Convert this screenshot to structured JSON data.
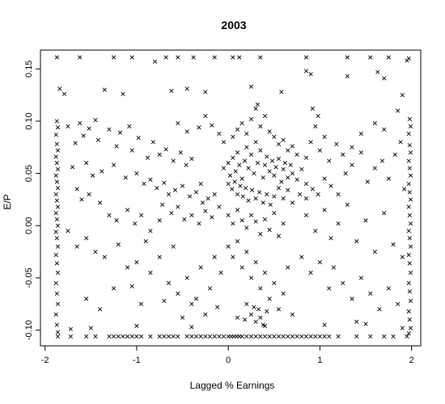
{
  "chart_data": {
    "type": "scatter",
    "title": "2003",
    "xlabel": "Lagged % Earnings",
    "ylabel": "E/P",
    "xlim": [
      -2.05,
      2.1
    ],
    "ylim": [
      -0.115,
      0.168
    ],
    "xticks": [
      -2,
      -1,
      0,
      1,
      2
    ],
    "xtick_labels": [
      "-2",
      "-1",
      "0",
      "1",
      "2"
    ],
    "yticks": [
      -0.1,
      -0.05,
      0.0,
      0.05,
      0.1,
      0.15
    ],
    "ytick_labels": [
      "-0.10",
      "-0.05",
      "0.00",
      "0.05",
      "0.10",
      "0.15"
    ],
    "marker": "x",
    "grid": false,
    "legend": "none",
    "points": [
      [
        -1.87,
        0.161
      ],
      [
        -1.62,
        0.161
      ],
      [
        -1.25,
        0.161
      ],
      [
        -1.05,
        0.161
      ],
      [
        -0.8,
        0.157
      ],
      [
        -0.68,
        0.161
      ],
      [
        -0.55,
        0.161
      ],
      [
        -0.38,
        0.161
      ],
      [
        -0.15,
        0.161
      ],
      [
        0.05,
        0.161
      ],
      [
        0.12,
        0.161
      ],
      [
        0.35,
        0.161
      ],
      [
        0.85,
        0.161
      ],
      [
        1.3,
        0.161
      ],
      [
        1.55,
        0.161
      ],
      [
        1.75,
        0.161
      ],
      [
        1.95,
        0.158
      ],
      [
        1.97,
        0.16
      ],
      [
        -1.84,
        0.131
      ],
      [
        -1.79,
        0.126
      ],
      [
        -1.35,
        0.13
      ],
      [
        -1.15,
        0.126
      ],
      [
        -0.62,
        0.129
      ],
      [
        -0.45,
        0.131
      ],
      [
        -0.25,
        0.128
      ],
      [
        0.25,
        0.133
      ],
      [
        0.58,
        0.128
      ],
      [
        1.3,
        0.143
      ],
      [
        1.63,
        0.147
      ],
      [
        1.7,
        0.141
      ],
      [
        0.85,
        0.148
      ],
      [
        0.9,
        0.145
      ],
      [
        -1.87,
        0.1
      ],
      [
        -1.86,
        0.094
      ],
      [
        -1.88,
        0.087
      ],
      [
        -1.87,
        0.078
      ],
      [
        -1.86,
        0.072
      ],
      [
        -1.88,
        0.066
      ],
      [
        -1.87,
        0.06
      ],
      [
        -1.86,
        0.054
      ],
      [
        -1.88,
        0.048
      ],
      [
        -1.87,
        0.042
      ],
      [
        -1.86,
        0.036
      ],
      [
        -1.88,
        0.03
      ],
      [
        -1.87,
        0.024
      ],
      [
        -1.86,
        0.018
      ],
      [
        -1.88,
        0.012
      ],
      [
        -1.87,
        0.006
      ],
      [
        -1.86,
        0.0
      ],
      [
        -1.88,
        -0.006
      ],
      [
        -1.87,
        -0.012
      ],
      [
        -1.86,
        -0.02
      ],
      [
        -1.88,
        -0.028
      ],
      [
        -1.87,
        -0.036
      ],
      [
        -1.86,
        -0.045
      ],
      [
        -1.88,
        -0.055
      ],
      [
        -1.87,
        -0.065
      ],
      [
        -1.86,
        -0.075
      ],
      [
        -1.88,
        -0.085
      ],
      [
        -1.87,
        -0.095
      ],
      [
        -1.86,
        -0.102
      ],
      [
        1.98,
        0.102
      ],
      [
        1.99,
        0.095
      ],
      [
        1.97,
        0.088
      ],
      [
        1.98,
        0.077
      ],
      [
        1.99,
        0.07
      ],
      [
        1.97,
        0.062
      ],
      [
        1.98,
        0.055
      ],
      [
        1.99,
        0.048
      ],
      [
        1.97,
        0.04
      ],
      [
        1.98,
        0.032
      ],
      [
        1.99,
        0.025
      ],
      [
        1.97,
        0.018
      ],
      [
        1.98,
        0.01
      ],
      [
        1.99,
        0.002
      ],
      [
        1.97,
        -0.005
      ],
      [
        1.98,
        -0.012
      ],
      [
        1.99,
        -0.02
      ],
      [
        1.97,
        -0.028
      ],
      [
        1.98,
        -0.036
      ],
      [
        1.99,
        -0.045
      ],
      [
        1.97,
        -0.055
      ],
      [
        1.98,
        -0.063
      ],
      [
        1.99,
        -0.072
      ],
      [
        1.97,
        -0.082
      ],
      [
        1.98,
        -0.09
      ],
      [
        1.99,
        -0.098
      ],
      [
        1.97,
        -0.103
      ],
      [
        -1.86,
        -0.106
      ],
      [
        -1.72,
        -0.106
      ],
      [
        -1.55,
        -0.106
      ],
      [
        -1.45,
        -0.106
      ],
      [
        -1.3,
        -0.106
      ],
      [
        -1.25,
        -0.106
      ],
      [
        -1.2,
        -0.106
      ],
      [
        -1.15,
        -0.106
      ],
      [
        -1.1,
        -0.106
      ],
      [
        -1.05,
        -0.106
      ],
      [
        -1.0,
        -0.106
      ],
      [
        -0.95,
        -0.106
      ],
      [
        -0.85,
        -0.106
      ],
      [
        -0.75,
        -0.106
      ],
      [
        -0.7,
        -0.106
      ],
      [
        -0.65,
        -0.106
      ],
      [
        -0.6,
        -0.106
      ],
      [
        -0.55,
        -0.106
      ],
      [
        -0.45,
        -0.106
      ],
      [
        -0.4,
        -0.106
      ],
      [
        -0.35,
        -0.106
      ],
      [
        -0.3,
        -0.106
      ],
      [
        -0.25,
        -0.106
      ],
      [
        -0.2,
        -0.106
      ],
      [
        -0.15,
        -0.106
      ],
      [
        -0.1,
        -0.106
      ],
      [
        -0.05,
        -0.106
      ],
      [
        0.0,
        -0.106
      ],
      [
        0.03,
        -0.106
      ],
      [
        0.06,
        -0.106
      ],
      [
        0.09,
        -0.106
      ],
      [
        0.12,
        -0.106
      ],
      [
        0.15,
        -0.106
      ],
      [
        0.2,
        -0.106
      ],
      [
        0.25,
        -0.106
      ],
      [
        0.3,
        -0.106
      ],
      [
        0.35,
        -0.106
      ],
      [
        0.4,
        -0.106
      ],
      [
        0.45,
        -0.106
      ],
      [
        0.5,
        -0.106
      ],
      [
        0.55,
        -0.106
      ],
      [
        0.6,
        -0.106
      ],
      [
        0.65,
        -0.106
      ],
      [
        0.7,
        -0.106
      ],
      [
        0.75,
        -0.106
      ],
      [
        0.8,
        -0.106
      ],
      [
        0.85,
        -0.106
      ],
      [
        0.9,
        -0.106
      ],
      [
        0.95,
        -0.106
      ],
      [
        1.0,
        -0.106
      ],
      [
        1.05,
        -0.106
      ],
      [
        1.1,
        -0.106
      ],
      [
        1.2,
        -0.106
      ],
      [
        1.4,
        -0.106
      ],
      [
        1.55,
        -0.106
      ],
      [
        1.7,
        -0.106
      ],
      [
        1.8,
        -0.106
      ],
      [
        1.95,
        -0.106
      ],
      [
        -1.72,
        -0.099
      ],
      [
        -1.5,
        -0.098
      ],
      [
        -1.0,
        -0.096
      ],
      [
        -0.4,
        -0.097
      ],
      [
        0.4,
        -0.096
      ],
      [
        1.05,
        -0.095
      ],
      [
        1.4,
        -0.092
      ],
      [
        1.5,
        -0.094
      ],
      [
        1.9,
        -0.098
      ],
      [
        -1.75,
        0.095
      ],
      [
        -1.62,
        0.098
      ],
      [
        -1.52,
        0.093
      ],
      [
        -1.45,
        0.101
      ],
      [
        -1.3,
        0.092
      ],
      [
        -1.18,
        0.089
      ],
      [
        -1.08,
        0.095
      ],
      [
        -0.98,
        0.084
      ],
      [
        -1.58,
        0.086
      ],
      [
        -1.67,
        0.079
      ],
      [
        -1.42,
        0.082
      ],
      [
        -1.22,
        0.076
      ],
      [
        -1.05,
        0.072
      ],
      [
        -0.88,
        0.065
      ],
      [
        -0.75,
        0.068
      ],
      [
        -0.82,
        0.08
      ],
      [
        -0.68,
        0.073
      ],
      [
        -0.6,
        0.062
      ],
      [
        -0.52,
        0.07
      ],
      [
        -0.46,
        0.058
      ],
      [
        -0.4,
        0.064
      ],
      [
        -0.45,
        0.09
      ],
      [
        -0.55,
        0.098
      ],
      [
        -0.32,
        0.094
      ],
      [
        -0.25,
        0.105
      ],
      [
        -0.18,
        0.096
      ],
      [
        -0.1,
        0.088
      ],
      [
        -0.05,
        0.08
      ],
      [
        -1.7,
        0.056
      ],
      [
        -1.55,
        0.06
      ],
      [
        -1.48,
        0.048
      ],
      [
        -1.38,
        0.052
      ],
      [
        -1.25,
        0.058
      ],
      [
        -1.12,
        0.046
      ],
      [
        -1.0,
        0.05
      ],
      [
        -0.92,
        0.04
      ],
      [
        -0.85,
        0.044
      ],
      [
        -0.78,
        0.036
      ],
      [
        -0.7,
        0.041
      ],
      [
        -0.65,
        0.03
      ],
      [
        -0.58,
        0.034
      ],
      [
        -0.5,
        0.038
      ],
      [
        -0.42,
        0.028
      ],
      [
        -0.35,
        0.032
      ],
      [
        -0.3,
        0.04
      ],
      [
        -0.28,
        0.022
      ],
      [
        -0.22,
        0.026
      ],
      [
        -0.15,
        0.03
      ],
      [
        -0.1,
        0.018
      ],
      [
        -1.65,
        0.035
      ],
      [
        -1.6,
        0.025
      ],
      [
        -1.52,
        0.03
      ],
      [
        -1.4,
        0.022
      ],
      [
        -1.3,
        0.01
      ],
      [
        -1.22,
        0.005
      ],
      [
        -1.1,
        0.015
      ],
      [
        -1.02,
        0.002
      ],
      [
        -0.95,
        0.01
      ],
      [
        -0.85,
        -0.005
      ],
      [
        -0.75,
        0.005
      ],
      [
        -0.72,
        0.02
      ],
      [
        -0.62,
        0.012
      ],
      [
        -0.55,
        0.018
      ],
      [
        -0.48,
        0.006
      ],
      [
        -0.4,
        0.01
      ],
      [
        -0.32,
        0.002
      ],
      [
        -0.25,
        0.014
      ],
      [
        -0.18,
        0.008
      ],
      [
        -1.75,
        -0.005
      ],
      [
        -1.65,
        -0.02
      ],
      [
        -1.55,
        -0.012
      ],
      [
        -1.45,
        -0.025
      ],
      [
        -1.35,
        -0.03
      ],
      [
        -1.2,
        -0.018
      ],
      [
        -1.1,
        -0.04
      ],
      [
        -1.0,
        -0.035
      ],
      [
        -0.9,
        -0.015
      ],
      [
        -0.85,
        -0.045
      ],
      [
        -0.75,
        -0.03
      ],
      [
        -0.65,
        -0.055
      ],
      [
        -0.6,
        -0.02
      ],
      [
        -0.55,
        -0.065
      ],
      [
        -0.45,
        -0.05
      ],
      [
        -0.4,
        -0.075
      ],
      [
        -0.3,
        -0.04
      ],
      [
        -0.25,
        -0.085
      ],
      [
        -0.2,
        -0.06
      ],
      [
        -0.15,
        -0.03
      ],
      [
        -1.55,
        -0.07
      ],
      [
        -1.4,
        -0.08
      ],
      [
        -1.25,
        -0.06
      ],
      [
        -1.05,
        -0.058
      ],
      [
        -0.95,
        -0.075
      ],
      [
        -0.7,
        -0.072
      ],
      [
        -0.5,
        -0.088
      ],
      [
        -0.35,
        -0.07
      ],
      [
        -0.12,
        -0.078
      ],
      [
        -0.08,
        -0.045
      ],
      [
        -0.05,
        0.055
      ],
      [
        0.0,
        0.06
      ],
      [
        0.02,
        0.048
      ],
      [
        0.05,
        0.065
      ],
      [
        0.08,
        0.052
      ],
      [
        0.1,
        0.07
      ],
      [
        0.12,
        0.058
      ],
      [
        0.15,
        0.045
      ],
      [
        0.18,
        0.062
      ],
      [
        0.2,
        0.075
      ],
      [
        0.22,
        0.055
      ],
      [
        0.25,
        0.068
      ],
      [
        0.28,
        0.05
      ],
      [
        0.3,
        0.08
      ],
      [
        0.32,
        0.06
      ],
      [
        0.35,
        0.072
      ],
      [
        0.38,
        0.046
      ],
      [
        0.4,
        0.058
      ],
      [
        0.42,
        0.066
      ],
      [
        0.45,
        0.052
      ],
      [
        0.48,
        0.062
      ],
      [
        0.5,
        0.048
      ],
      [
        0.52,
        0.056
      ],
      [
        0.55,
        0.064
      ],
      [
        0.58,
        0.042
      ],
      [
        0.6,
        0.054
      ],
      [
        0.62,
        0.06
      ],
      [
        0.65,
        0.046
      ],
      [
        0.68,
        0.058
      ],
      [
        0.7,
        0.05
      ],
      [
        0.75,
        0.044
      ],
      [
        0.8,
        0.054
      ],
      [
        0.0,
        0.04
      ],
      [
        0.04,
        0.035
      ],
      [
        0.07,
        0.042
      ],
      [
        0.1,
        0.03
      ],
      [
        0.13,
        0.038
      ],
      [
        0.16,
        0.028
      ],
      [
        0.19,
        0.036
      ],
      [
        0.22,
        0.024
      ],
      [
        0.26,
        0.034
      ],
      [
        0.3,
        0.026
      ],
      [
        0.34,
        0.032
      ],
      [
        0.38,
        0.022
      ],
      [
        0.42,
        0.03
      ],
      [
        0.46,
        0.02
      ],
      [
        0.5,
        0.028
      ],
      [
        0.55,
        0.036
      ],
      [
        0.6,
        0.026
      ],
      [
        0.65,
        0.034
      ],
      [
        0.7,
        0.022
      ],
      [
        0.78,
        0.03
      ],
      [
        0.85,
        0.026
      ],
      [
        0.05,
        0.085
      ],
      [
        0.1,
        0.092
      ],
      [
        0.15,
        0.098
      ],
      [
        0.2,
        0.088
      ],
      [
        0.25,
        0.102
      ],
      [
        0.3,
        0.112
      ],
      [
        0.32,
        0.116
      ],
      [
        0.35,
        0.095
      ],
      [
        0.4,
        0.105
      ],
      [
        0.45,
        0.09
      ],
      [
        0.5,
        0.085
      ],
      [
        0.55,
        0.078
      ],
      [
        0.6,
        0.082
      ],
      [
        0.65,
        0.072
      ],
      [
        0.7,
        0.076
      ],
      [
        0.75,
        0.068
      ],
      [
        0.0,
        0.01
      ],
      [
        0.05,
        0.002
      ],
      [
        0.1,
        0.015
      ],
      [
        0.15,
        0.005
      ],
      [
        0.2,
        -0.002
      ],
      [
        0.25,
        0.01
      ],
      [
        0.3,
        0.004
      ],
      [
        0.35,
        -0.008
      ],
      [
        0.4,
        0.006
      ],
      [
        0.45,
        -0.004
      ],
      [
        0.5,
        0.012
      ],
      [
        0.55,
        -0.01
      ],
      [
        0.6,
        0.002
      ],
      [
        0.0,
        -0.02
      ],
      [
        0.05,
        -0.03
      ],
      [
        0.1,
        -0.015
      ],
      [
        0.15,
        -0.04
      ],
      [
        0.2,
        -0.025
      ],
      [
        0.25,
        -0.05
      ],
      [
        0.3,
        -0.035
      ],
      [
        0.35,
        -0.06
      ],
      [
        0.4,
        -0.045
      ],
      [
        0.45,
        -0.07
      ],
      [
        0.5,
        -0.055
      ],
      [
        0.55,
        -0.08
      ],
      [
        0.6,
        -0.065
      ],
      [
        0.65,
        -0.04
      ],
      [
        0.7,
        -0.085
      ],
      [
        0.2,
        -0.075
      ],
      [
        0.25,
        -0.085
      ],
      [
        0.28,
        -0.078
      ],
      [
        0.3,
        -0.092
      ],
      [
        0.33,
        -0.08
      ],
      [
        0.35,
        -0.088
      ],
      [
        0.38,
        -0.095
      ],
      [
        0.42,
        -0.082
      ],
      [
        0.18,
        -0.09
      ],
      [
        0.1,
        -0.088
      ],
      [
        0.85,
        0.04
      ],
      [
        0.92,
        0.035
      ],
      [
        0.98,
        0.03
      ],
      [
        1.05,
        0.045
      ],
      [
        1.12,
        0.038
      ],
      [
        1.2,
        0.03
      ],
      [
        1.28,
        0.05
      ],
      [
        1.35,
        0.058
      ],
      [
        1.45,
        0.07
      ],
      [
        1.52,
        0.042
      ],
      [
        1.6,
        0.055
      ],
      [
        1.68,
        0.062
      ],
      [
        1.75,
        0.045
      ],
      [
        1.82,
        0.068
      ],
      [
        1.88,
        0.08
      ],
      [
        1.92,
        0.035
      ],
      [
        0.85,
        0.065
      ],
      [
        0.9,
        0.08
      ],
      [
        0.95,
        0.095
      ],
      [
        1.0,
        0.072
      ],
      [
        1.05,
        0.085
      ],
      [
        1.1,
        0.062
      ],
      [
        1.18,
        0.078
      ],
      [
        1.25,
        0.068
      ],
      [
        1.35,
        0.075
      ],
      [
        1.45,
        0.088
      ],
      [
        1.6,
        0.098
      ],
      [
        1.7,
        0.092
      ],
      [
        1.85,
        0.11
      ],
      [
        1.9,
        0.125
      ],
      [
        0.98,
        0.105
      ],
      [
        0.92,
        0.112
      ],
      [
        0.85,
        0.01
      ],
      [
        0.95,
        -0.005
      ],
      [
        1.05,
        0.015
      ],
      [
        1.12,
        -0.012
      ],
      [
        1.2,
        0.002
      ],
      [
        1.3,
        0.02
      ],
      [
        1.4,
        -0.015
      ],
      [
        1.5,
        0.005
      ],
      [
        1.6,
        -0.025
      ],
      [
        1.7,
        0.012
      ],
      [
        1.8,
        -0.018
      ],
      [
        1.9,
        -0.03
      ],
      [
        0.8,
        -0.03
      ],
      [
        0.9,
        -0.045
      ],
      [
        1.0,
        -0.035
      ],
      [
        1.1,
        -0.06
      ],
      [
        1.15,
        -0.04
      ],
      [
        1.25,
        -0.055
      ],
      [
        1.35,
        -0.07
      ],
      [
        1.45,
        -0.05
      ],
      [
        1.55,
        -0.065
      ],
      [
        1.65,
        -0.08
      ],
      [
        1.75,
        -0.06
      ],
      [
        1.85,
        -0.075
      ]
    ]
  }
}
